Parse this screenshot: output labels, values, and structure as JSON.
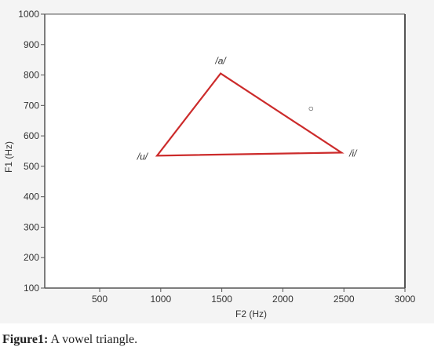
{
  "chart_data": {
    "type": "scatter",
    "title": "",
    "xlabel": "F2 (Hz)",
    "ylabel": "F1 (Hz)",
    "xlim": [
      50,
      3000
    ],
    "ylim": [
      100,
      1000
    ],
    "x_ticks": [
      "500",
      "1000",
      "1500",
      "2000",
      "2500",
      "3000"
    ],
    "y_ticks": [
      "100",
      "200",
      "300",
      "400",
      "500",
      "600",
      "700",
      "800",
      "900",
      "1000"
    ],
    "grid": false,
    "polygon_closed": true,
    "line_color": "#cc2b2b",
    "points": [
      {
        "label": "/a/",
        "x": 1490,
        "y": 805
      },
      {
        "label": "/i/",
        "x": 2480,
        "y": 545
      },
      {
        "label": "/u/",
        "x": 970,
        "y": 535
      }
    ],
    "annotations": [
      {
        "text": "○",
        "x": 2230,
        "y": 690
      }
    ]
  },
  "caption": {
    "label": "Figure1:",
    "text": " A vowel triangle."
  }
}
